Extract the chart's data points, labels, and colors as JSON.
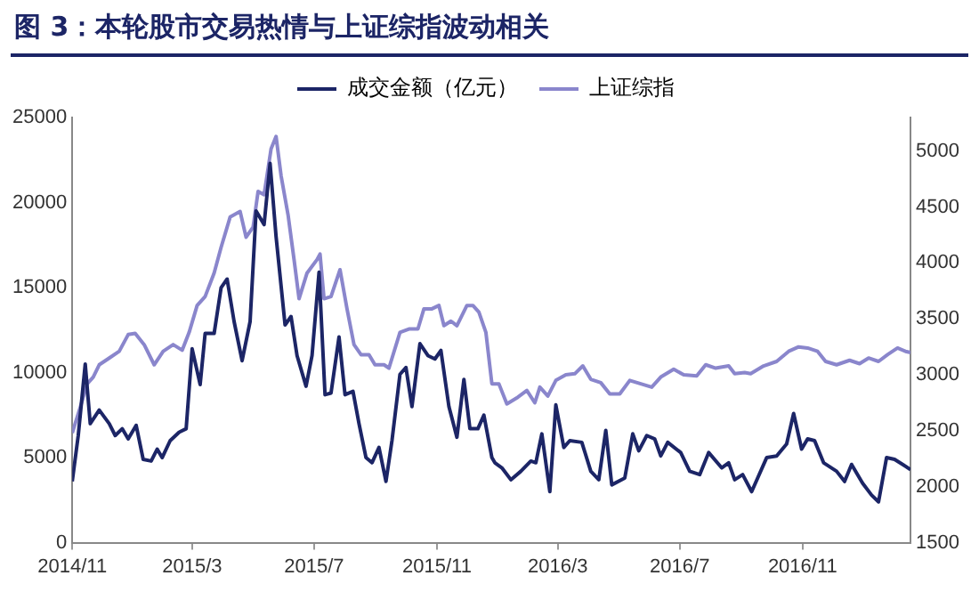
{
  "chart_data": {
    "type": "line",
    "title": "图 3：本轮股市交易热情与上证综指波动相关",
    "xlim": [
      "2014-11-01",
      "2017-02-17"
    ],
    "xticks": [
      {
        "value": "2014-11-01",
        "label": "2014/11"
      },
      {
        "value": "2015-03-01",
        "label": "2015/3"
      },
      {
        "value": "2015-07-01",
        "label": "2015/7"
      },
      {
        "value": "2015-11-01",
        "label": "2015/11"
      },
      {
        "value": "2016-03-01",
        "label": "2016/3"
      },
      {
        "value": "2016-07-01",
        "label": "2016/7"
      },
      {
        "value": "2016-11-01",
        "label": "2016/11"
      }
    ],
    "ylim": [
      0,
      25000
    ],
    "yticks": [
      0,
      5000,
      10000,
      15000,
      20000,
      25000
    ],
    "y2lim": [
      1500,
      5300
    ],
    "y2ticks": [
      1500,
      2000,
      2500,
      3000,
      3500,
      4000,
      4500,
      5000
    ],
    "grid": false,
    "legend": "top",
    "marker": "none",
    "line_style": "solid",
    "series": [
      {
        "name": "成交金额（亿元）",
        "color": "#1c2566",
        "x": [
          "2014-11-01",
          "2014-11-07",
          "2014-11-14",
          "2014-11-19",
          "2014-11-28",
          "2014-12-08",
          "2014-12-14",
          "2014-12-21",
          "2014-12-27",
          "2015-01-04",
          "2015-01-11",
          "2015-01-19",
          "2015-01-25",
          "2015-01-30",
          "2015-02-07",
          "2015-02-16",
          "2015-02-23",
          "2015-03-01",
          "2015-03-09",
          "2015-03-14",
          "2015-03-23",
          "2015-03-30",
          "2015-04-05",
          "2015-04-12",
          "2015-04-20",
          "2015-04-28",
          "2015-05-04",
          "2015-05-12",
          "2015-05-18",
          "2015-05-24",
          "2015-06-02",
          "2015-06-08",
          "2015-06-14",
          "2015-06-23",
          "2015-06-29",
          "2015-07-06",
          "2015-07-12",
          "2015-07-18",
          "2015-07-26",
          "2015-08-01",
          "2015-08-09",
          "2015-08-15",
          "2015-08-22",
          "2015-08-28",
          "2015-09-04",
          "2015-09-11",
          "2015-09-17",
          "2015-09-25",
          "2015-10-01",
          "2015-10-07",
          "2015-10-15",
          "2015-10-23",
          "2015-10-30",
          "2015-11-05",
          "2015-11-13",
          "2015-11-21",
          "2015-11-28",
          "2015-12-04",
          "2015-12-12",
          "2015-12-18",
          "2015-12-26",
          "2015-12-29",
          "2016-01-05",
          "2016-01-14",
          "2016-01-24",
          "2016-02-03",
          "2016-02-08",
          "2016-02-14",
          "2016-02-22",
          "2016-02-28",
          "2016-03-07",
          "2016-03-13",
          "2016-03-25",
          "2016-04-03",
          "2016-04-11",
          "2016-04-18",
          "2016-04-24",
          "2016-05-07",
          "2016-05-15",
          "2016-05-21",
          "2016-05-29",
          "2016-06-06",
          "2016-06-12",
          "2016-06-19",
          "2016-07-02",
          "2016-07-11",
          "2016-07-21",
          "2016-07-30",
          "2016-08-12",
          "2016-08-19",
          "2016-08-25",
          "2016-09-02",
          "2016-09-11",
          "2016-09-26",
          "2016-10-06",
          "2016-10-16",
          "2016-10-23",
          "2016-10-31",
          "2016-11-06",
          "2016-11-13",
          "2016-11-22",
          "2016-12-05",
          "2016-12-13",
          "2016-12-20",
          "2016-12-31",
          "2017-01-09",
          "2017-01-16",
          "2017-01-24",
          "2017-02-01",
          "2017-02-17"
        ],
        "values": [
          3600,
          6300,
          10500,
          7000,
          7800,
          7000,
          6300,
          6700,
          6100,
          6900,
          4900,
          4800,
          5500,
          5000,
          6000,
          6500,
          6700,
          11400,
          9300,
          12300,
          12300,
          15000,
          15500,
          13000,
          10700,
          13000,
          19500,
          18700,
          22300,
          18000,
          12800,
          13300,
          11000,
          9200,
          11000,
          15900,
          8700,
          8800,
          12100,
          8700,
          8900,
          7000,
          5000,
          4700,
          5600,
          3600,
          6000,
          9900,
          10300,
          8000,
          11700,
          11000,
          10800,
          11300,
          8000,
          6200,
          9600,
          6700,
          6700,
          7500,
          5000,
          4700,
          4400,
          3700,
          4200,
          4800,
          4700,
          6400,
          3000,
          8100,
          5600,
          6000,
          5900,
          4200,
          3700,
          6600,
          3400,
          3800,
          6400,
          5400,
          6300,
          6100,
          5100,
          5900,
          5300,
          4200,
          4000,
          5300,
          4400,
          4700,
          3700,
          4000,
          3000,
          5000,
          5100,
          5800,
          7600,
          5500,
          6100,
          6000,
          4700,
          4200,
          3600,
          4600,
          3500,
          2800,
          2400,
          5000,
          4900,
          4300
        ]
      },
      {
        "name": "上证综指",
        "color": "#8a86cc",
        "axis": "y2",
        "x": [
          "2014-11-01",
          "2014-11-09",
          "2014-11-16",
          "2014-11-22",
          "2014-11-28",
          "2014-12-08",
          "2014-12-18",
          "2014-12-27",
          "2015-01-03",
          "2015-01-12",
          "2015-01-22",
          "2015-01-31",
          "2015-02-10",
          "2015-02-19",
          "2015-02-26",
          "2015-03-06",
          "2015-03-14",
          "2015-03-23",
          "2015-03-30",
          "2015-04-08",
          "2015-04-18",
          "2015-04-24",
          "2015-05-01",
          "2015-05-06",
          "2015-05-12",
          "2015-05-19",
          "2015-05-24",
          "2015-05-29",
          "2015-06-05",
          "2015-06-11",
          "2015-06-16",
          "2015-06-24",
          "2015-07-04",
          "2015-07-07",
          "2015-07-11",
          "2015-07-18",
          "2015-07-27",
          "2015-08-03",
          "2015-08-10",
          "2015-08-17",
          "2015-08-25",
          "2015-08-31",
          "2015-09-09",
          "2015-09-14",
          "2015-09-25",
          "2015-10-04",
          "2015-10-13",
          "2015-10-19",
          "2015-10-27",
          "2015-11-03",
          "2015-11-08",
          "2015-11-15",
          "2015-11-21",
          "2015-12-01",
          "2015-12-07",
          "2015-12-13",
          "2015-12-20",
          "2015-12-26",
          "2016-01-02",
          "2016-01-10",
          "2016-01-21",
          "2016-01-30",
          "2016-02-07",
          "2016-02-12",
          "2016-02-20",
          "2016-02-28",
          "2016-03-09",
          "2016-03-18",
          "2016-03-26",
          "2016-04-03",
          "2016-04-13",
          "2016-04-22",
          "2016-05-02",
          "2016-05-12",
          "2016-05-23",
          "2016-06-03",
          "2016-06-12",
          "2016-06-25",
          "2016-07-05",
          "2016-07-18",
          "2016-07-27",
          "2016-08-06",
          "2016-08-19",
          "2016-08-25",
          "2016-09-04",
          "2016-09-10",
          "2016-09-23",
          "2016-10-06",
          "2016-10-18",
          "2016-10-28",
          "2016-11-06",
          "2016-11-16",
          "2016-11-24",
          "2016-12-05",
          "2016-12-18",
          "2016-12-28",
          "2017-01-06",
          "2017-01-16",
          "2017-01-25",
          "2017-02-04",
          "2017-02-12",
          "2017-02-17"
        ],
        "values": [
          2480,
          2710,
          2920,
          2980,
          3090,
          3150,
          3210,
          3360,
          3370,
          3270,
          3090,
          3210,
          3270,
          3220,
          3380,
          3620,
          3700,
          3910,
          4140,
          4410,
          4460,
          4230,
          4320,
          4640,
          4610,
          5020,
          5130,
          4780,
          4430,
          4030,
          3680,
          3910,
          4030,
          4080,
          3680,
          3700,
          3940,
          3590,
          3270,
          3180,
          3180,
          3090,
          3090,
          3060,
          3380,
          3410,
          3410,
          3590,
          3590,
          3620,
          3440,
          3480,
          3440,
          3620,
          3620,
          3560,
          3380,
          2920,
          2920,
          2740,
          2800,
          2860,
          2750,
          2890,
          2810,
          2950,
          3000,
          3010,
          3080,
          2960,
          2930,
          2830,
          2830,
          2950,
          2920,
          2890,
          2980,
          3050,
          3000,
          2990,
          3090,
          3060,
          3080,
          3010,
          3020,
          3010,
          3080,
          3120,
          3210,
          3250,
          3240,
          3210,
          3120,
          3090,
          3130,
          3100,
          3150,
          3120,
          3180,
          3240,
          3210,
          3200
        ]
      }
    ]
  }
}
